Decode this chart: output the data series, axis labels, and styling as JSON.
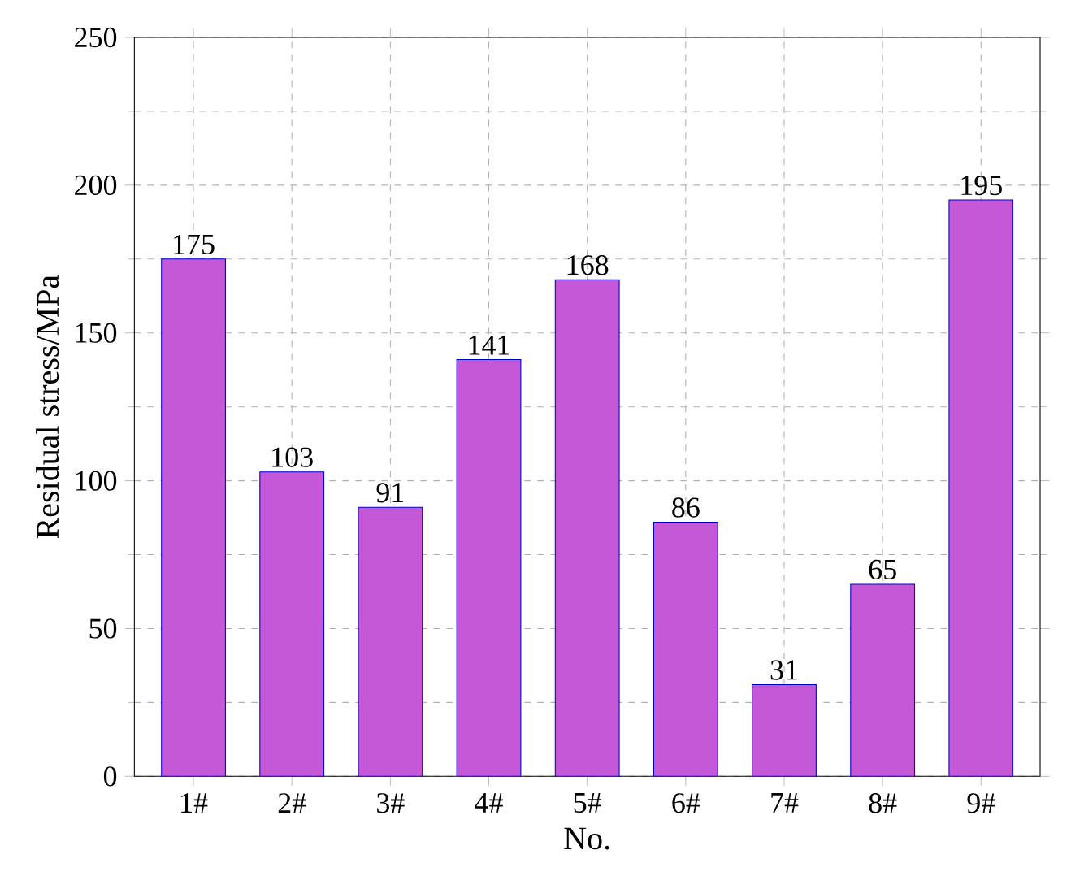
{
  "chart_data": {
    "type": "bar",
    "xlabel": "No.",
    "ylabel": "Residual stress/MPa",
    "categories": [
      "1#",
      "2#",
      "3#",
      "4#",
      "5#",
      "6#",
      "7#",
      "8#",
      "9#"
    ],
    "values": [
      175,
      103,
      91,
      141,
      168,
      86,
      31,
      65,
      195
    ],
    "color": "#c458d6",
    "ylim": [
      0,
      250
    ],
    "yticks": [
      0,
      50,
      100,
      150,
      200,
      250
    ],
    "grid": true,
    "data_labels": true
  }
}
